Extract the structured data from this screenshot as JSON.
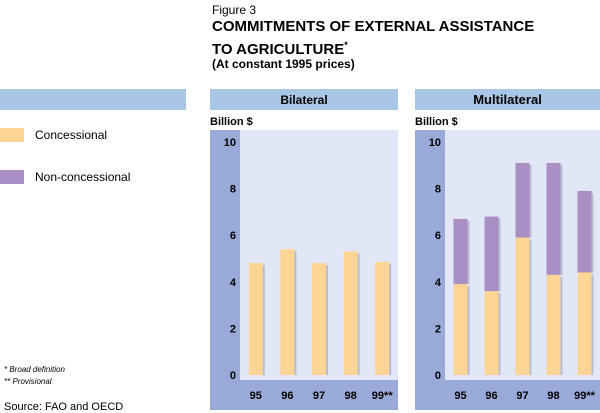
{
  "header": {
    "figure_label": "Figure 3",
    "title_line1": "COMMITMENTS OF EXTERNAL ASSISTANCE",
    "title_line2": "TO AGRICULTURE",
    "title_mark": "*",
    "subtitle": "(At constant 1995 prices)"
  },
  "legend": {
    "items": [
      {
        "label": "Concessional",
        "color": "#fcd494"
      },
      {
        "label": "Non-concessional",
        "color": "#a98fc4"
      }
    ]
  },
  "notes": {
    "note1": "*  Broad definition",
    "note2": "** Provisional",
    "source": "Source: FAO and OECD"
  },
  "colors": {
    "panel_header": "#a9c6e6",
    "plot_background": "#e2e7f7",
    "axis_strip": "#9aaad8",
    "concessional": "#fcd494",
    "non_concessional": "#a98fc4"
  },
  "chart_data": [
    {
      "type": "bar",
      "stacked": true,
      "title": "Bilateral",
      "ylabel": "Billion $",
      "categories": [
        "95",
        "96",
        "97",
        "98",
        "99**"
      ],
      "ylim": [
        0,
        10
      ],
      "yticks": [
        0,
        2,
        4,
        6,
        8,
        10
      ],
      "series": [
        {
          "name": "Concessional",
          "values": [
            4.8,
            5.4,
            4.8,
            5.3,
            4.85
          ]
        },
        {
          "name": "Non-concessional",
          "values": [
            0,
            0,
            0,
            0,
            0
          ]
        }
      ]
    },
    {
      "type": "bar",
      "stacked": true,
      "title": "Multilateral",
      "ylabel": "Billion $",
      "categories": [
        "95",
        "96",
        "97",
        "98",
        "99**"
      ],
      "ylim": [
        0,
        10
      ],
      "yticks": [
        0,
        2,
        4,
        6,
        8,
        10
      ],
      "series": [
        {
          "name": "Concessional",
          "values": [
            3.9,
            3.6,
            5.9,
            4.3,
            4.4
          ]
        },
        {
          "name": "Non-concessional",
          "values": [
            2.8,
            3.2,
            3.2,
            4.8,
            3.5
          ]
        }
      ]
    }
  ]
}
